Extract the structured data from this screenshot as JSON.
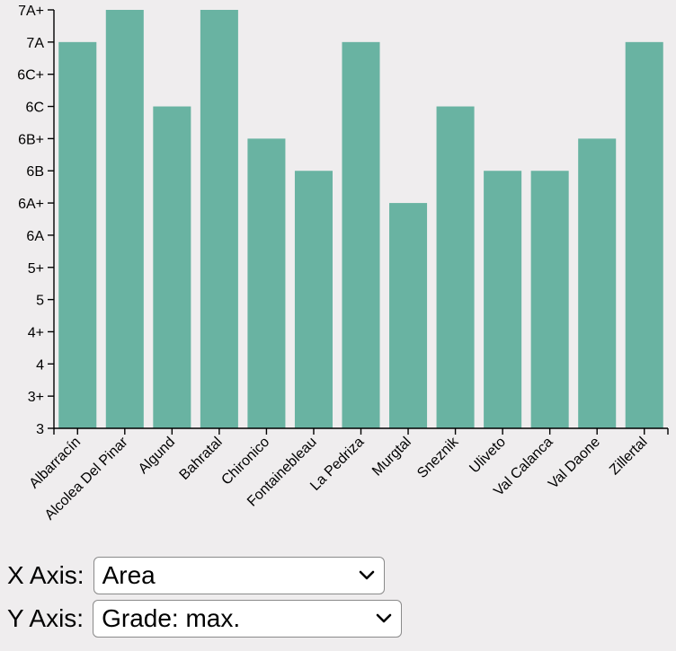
{
  "chart_data": {
    "type": "bar",
    "categories": [
      "Albarracín",
      "Alcolea Del Pinar",
      "Algund",
      "Bahratal",
      "Chironico",
      "Fontainebleau",
      "La Pedriza",
      "Murgtal",
      "Sneznik",
      "Uliveto",
      "Val Calanca",
      "Val Daone",
      "Zillertal"
    ],
    "grade_scale": [
      "3",
      "3+",
      "4",
      "4+",
      "5",
      "5+",
      "6A",
      "6A+",
      "6B",
      "6B+",
      "6C",
      "6C+",
      "7A",
      "7A+"
    ],
    "values": [
      "7A",
      "7A+",
      "6C",
      "7A+",
      "6B+",
      "6B",
      "7A",
      "6A+",
      "6C",
      "6B",
      "6B",
      "6B+",
      "7A"
    ],
    "ylim": [
      "3",
      "7A+"
    ],
    "bar_color": "#69b3a2",
    "title": "",
    "xlabel": "",
    "ylabel": ""
  },
  "controls": {
    "x_axis": {
      "label": "X Axis:",
      "selected": "Area"
    },
    "y_axis": {
      "label": "Y Axis:",
      "selected": "Grade: max."
    }
  },
  "colors": {
    "background": "#efedee",
    "bar": "#69b3a2"
  }
}
